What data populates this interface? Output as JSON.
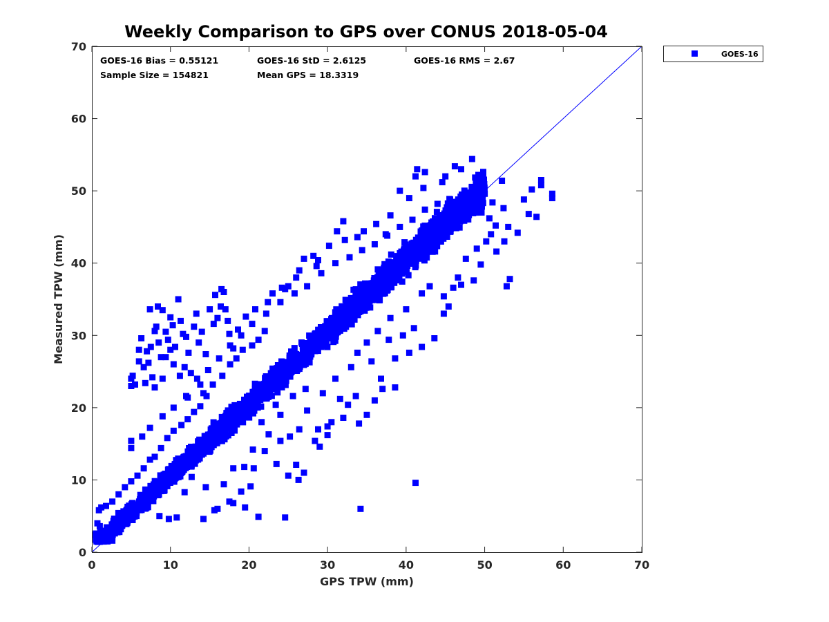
{
  "chart_data": {
    "type": "scatter",
    "title": "Weekly Comparison to GPS over CONUS 2018-05-04",
    "xlabel": "GPS TPW (mm)",
    "ylabel": "Measured TPW (mm)",
    "xlim": [
      0,
      70
    ],
    "ylim": [
      0,
      70
    ],
    "xticks": [
      0,
      10,
      20,
      30,
      40,
      50,
      60,
      70
    ],
    "yticks": [
      0,
      10,
      20,
      30,
      40,
      50,
      60,
      70
    ],
    "grid": false,
    "legend_position": "outside-top-right",
    "reference_line": {
      "from": [
        0,
        0
      ],
      "to": [
        70,
        70
      ],
      "color": "#0000ff"
    },
    "stats": [
      {
        "label": "GOES-16 Bias = 0.55121"
      },
      {
        "label": "GOES-16 StD = 2.6125"
      },
      {
        "label": "GOES-16 RMS = 2.67"
      },
      {
        "label": "Sample Size = 154821"
      },
      {
        "label": "Mean GPS = 18.3319"
      }
    ],
    "series": [
      {
        "name": "GOES-16",
        "color": "#0000ff",
        "marker": "square",
        "dense_band": {
          "description_units": "mm",
          "x_range": [
            0.5,
            50
          ],
          "halfwidth_lo": 1.6,
          "halfwidth_hi": 3.4,
          "count": 2600,
          "seed": 7
        },
        "points": [
          [
            1.0,
            3.6
          ],
          [
            1.5,
            2.0
          ],
          [
            2.0,
            1.5
          ],
          [
            2.6,
            1.6
          ],
          [
            0.9,
            5.8
          ],
          [
            1.2,
            6.2
          ],
          [
            0.7,
            4.0
          ],
          [
            3.5,
            2.8
          ],
          [
            5.0,
            23.0
          ],
          [
            5.0,
            24.0
          ],
          [
            5.2,
            24.4
          ],
          [
            5.5,
            23.2
          ],
          [
            6.0,
            28.0
          ],
          [
            6.3,
            29.6
          ],
          [
            6.6,
            25.6
          ],
          [
            7.0,
            27.8
          ],
          [
            7.2,
            26.2
          ],
          [
            7.5,
            28.4
          ],
          [
            7.7,
            24.2
          ],
          [
            8.0,
            30.6
          ],
          [
            8.2,
            31.2
          ],
          [
            8.5,
            29.0
          ],
          [
            8.8,
            27.0
          ],
          [
            9.0,
            33.5
          ],
          [
            9.4,
            30.5
          ],
          [
            9.7,
            29.4
          ],
          [
            10.0,
            32.5
          ],
          [
            10.3,
            31.4
          ],
          [
            10.6,
            28.4
          ],
          [
            11.0,
            35.0
          ],
          [
            11.3,
            32.0
          ],
          [
            11.6,
            30.2
          ],
          [
            12.0,
            29.8
          ],
          [
            12.3,
            27.6
          ],
          [
            12.6,
            24.8
          ],
          [
            13.0,
            31.2
          ],
          [
            13.3,
            33.0
          ],
          [
            13.6,
            29.0
          ],
          [
            14.0,
            30.5
          ],
          [
            14.5,
            27.4
          ],
          [
            15.0,
            33.6
          ],
          [
            15.5,
            31.6
          ],
          [
            15.7,
            35.6
          ],
          [
            16.0,
            32.4
          ],
          [
            16.5,
            36.4
          ],
          [
            16.8,
            36.0
          ],
          [
            16.4,
            34.0
          ],
          [
            17.0,
            33.6
          ],
          [
            17.5,
            30.2
          ],
          [
            18.0,
            28.2
          ],
          [
            17.3,
            32.0
          ],
          [
            6.0,
            26.4
          ],
          [
            6.8,
            23.4
          ],
          [
            9.0,
            24.0
          ],
          [
            10.4,
            26.0
          ],
          [
            11.8,
            25.6
          ],
          [
            13.8,
            23.2
          ],
          [
            12.2,
            21.4
          ],
          [
            14.2,
            22.0
          ],
          [
            8.0,
            22.8
          ],
          [
            10.0,
            28.0
          ],
          [
            7.4,
            33.6
          ],
          [
            8.4,
            34.0
          ],
          [
            9.4,
            27.0
          ],
          [
            11.2,
            24.4
          ],
          [
            24.6,
            4.8
          ],
          [
            21.2,
            4.9
          ],
          [
            19.5,
            6.2
          ],
          [
            18.0,
            6.8
          ],
          [
            17.5,
            7.0
          ],
          [
            16.8,
            9.4
          ],
          [
            15.6,
            5.8
          ],
          [
            14.5,
            9.0
          ],
          [
            12.7,
            10.4
          ],
          [
            11.8,
            8.3
          ],
          [
            20.2,
            9.1
          ],
          [
            19.0,
            8.4
          ],
          [
            10.8,
            4.8
          ],
          [
            9.8,
            4.6
          ],
          [
            8.6,
            5.0
          ],
          [
            22.0,
            14.0
          ],
          [
            23.5,
            12.2
          ],
          [
            25.0,
            10.6
          ],
          [
            26.3,
            10.0
          ],
          [
            27.0,
            11.0
          ],
          [
            26.0,
            12.1
          ],
          [
            22.5,
            16.3
          ],
          [
            24.0,
            15.4
          ],
          [
            25.2,
            16.0
          ],
          [
            26.4,
            17.0
          ],
          [
            29.0,
            14.6
          ],
          [
            30.0,
            16.2
          ],
          [
            32.0,
            18.6
          ],
          [
            34.0,
            17.8
          ],
          [
            35.0,
            19.0
          ],
          [
            36.0,
            21.0
          ],
          [
            37.0,
            22.6
          ],
          [
            38.6,
            22.8
          ],
          [
            41.2,
            9.6
          ],
          [
            34.2,
            6.0
          ],
          [
            28.8,
            17.0
          ],
          [
            30.5,
            18.0
          ],
          [
            27.4,
            19.6
          ],
          [
            24.0,
            19.0
          ],
          [
            21.6,
            18.0
          ],
          [
            20.5,
            14.2
          ],
          [
            30.0,
            17.4
          ],
          [
            32.6,
            20.4
          ],
          [
            33.6,
            21.6
          ],
          [
            36.8,
            24.0
          ],
          [
            38.6,
            26.8
          ],
          [
            40.4,
            27.6
          ],
          [
            42.0,
            28.4
          ],
          [
            43.6,
            29.6
          ],
          [
            44.8,
            33.0
          ],
          [
            46.0,
            36.6
          ],
          [
            47.0,
            37.0
          ],
          [
            48.6,
            37.6
          ],
          [
            52.8,
            36.8
          ],
          [
            53.2,
            37.8
          ],
          [
            49.5,
            39.8
          ],
          [
            51.5,
            41.6
          ],
          [
            52.5,
            43.0
          ],
          [
            53.0,
            45.0
          ],
          [
            54.2,
            44.2
          ],
          [
            55.6,
            46.8
          ],
          [
            56.6,
            46.4
          ],
          [
            55.0,
            48.8
          ],
          [
            56.0,
            50.2
          ],
          [
            57.2,
            50.8
          ],
          [
            57.2,
            51.5
          ],
          [
            58.6,
            49.0
          ],
          [
            58.6,
            49.6
          ],
          [
            52.2,
            51.4
          ],
          [
            51.0,
            48.4
          ],
          [
            50.0,
            49.6
          ],
          [
            49.2,
            52.2
          ],
          [
            48.4,
            54.4
          ],
          [
            47.0,
            53.0
          ],
          [
            46.2,
            53.4
          ],
          [
            45.0,
            52.0
          ],
          [
            44.6,
            51.2
          ],
          [
            42.2,
            50.4
          ],
          [
            42.4,
            52.6
          ],
          [
            41.2,
            52.0
          ],
          [
            41.4,
            53.0
          ],
          [
            40.4,
            49.0
          ],
          [
            39.2,
            50.0
          ],
          [
            38.0,
            46.6
          ],
          [
            37.4,
            44.0
          ],
          [
            36.2,
            45.4
          ],
          [
            34.6,
            44.4
          ],
          [
            33.8,
            43.6
          ],
          [
            32.2,
            43.2
          ],
          [
            32.0,
            45.8
          ],
          [
            31.2,
            44.4
          ],
          [
            30.2,
            42.4
          ],
          [
            28.2,
            41.0
          ],
          [
            28.8,
            40.4
          ],
          [
            27.0,
            40.6
          ],
          [
            26.0,
            38.0
          ],
          [
            25.0,
            36.8
          ],
          [
            24.2,
            36.6
          ],
          [
            23.0,
            35.8
          ],
          [
            24.6,
            36.4
          ],
          [
            22.4,
            34.6
          ],
          [
            20.8,
            33.6
          ],
          [
            19.6,
            32.6
          ],
          [
            18.6,
            30.8
          ],
          [
            28.6,
            39.6
          ],
          [
            26.4,
            39.0
          ],
          [
            22.0,
            30.6
          ],
          [
            21.2,
            29.4
          ],
          [
            20.4,
            28.6
          ],
          [
            19.2,
            28.0
          ],
          [
            18.4,
            26.8
          ],
          [
            17.6,
            26.0
          ],
          [
            16.6,
            24.4
          ],
          [
            15.4,
            23.2
          ],
          [
            14.6,
            21.6
          ],
          [
            13.8,
            20.2
          ],
          [
            13.0,
            19.4
          ],
          [
            12.2,
            18.4
          ],
          [
            11.4,
            17.6
          ],
          [
            10.4,
            16.8
          ],
          [
            9.6,
            15.8
          ],
          [
            8.8,
            14.4
          ],
          [
            8.0,
            13.2
          ],
          [
            7.4,
            12.8
          ],
          [
            6.6,
            11.6
          ],
          [
            5.8,
            10.6
          ],
          [
            5.0,
            9.8
          ],
          [
            4.2,
            9.0
          ],
          [
            3.4,
            8.0
          ],
          [
            2.6,
            7.0
          ],
          [
            1.8,
            6.4
          ],
          [
            5.0,
            15.4
          ],
          [
            5.0,
            14.4
          ],
          [
            6.4,
            16.0
          ],
          [
            7.4,
            17.2
          ],
          [
            9.0,
            18.8
          ],
          [
            10.4,
            20.0
          ],
          [
            12.0,
            21.6
          ],
          [
            13.4,
            24.0
          ],
          [
            14.8,
            25.2
          ],
          [
            16.2,
            26.8
          ],
          [
            17.6,
            28.6
          ],
          [
            19.0,
            30.0
          ],
          [
            20.4,
            31.6
          ],
          [
            22.2,
            33.0
          ],
          [
            24.0,
            34.6
          ],
          [
            25.8,
            35.8
          ],
          [
            27.4,
            36.8
          ],
          [
            29.2,
            38.6
          ],
          [
            31.0,
            40.0
          ],
          [
            32.8,
            40.8
          ],
          [
            34.4,
            41.8
          ],
          [
            36.0,
            42.6
          ],
          [
            37.6,
            43.8
          ],
          [
            39.2,
            45.0
          ],
          [
            40.8,
            46.0
          ],
          [
            42.4,
            47.4
          ],
          [
            44.0,
            48.2
          ],
          [
            45.6,
            48.8
          ],
          [
            47.2,
            49.2
          ],
          [
            48.4,
            48.6
          ],
          [
            49.6,
            47.0
          ],
          [
            50.6,
            46.2
          ],
          [
            51.4,
            45.2
          ],
          [
            50.8,
            44.0
          ],
          [
            52.4,
            47.6
          ],
          [
            14.2,
            4.6
          ],
          [
            16.0,
            6.0
          ],
          [
            20.6,
            11.6
          ],
          [
            19.4,
            11.8
          ],
          [
            18.0,
            11.6
          ],
          [
            28.4,
            15.4
          ],
          [
            31.6,
            21.2
          ],
          [
            33.0,
            25.6
          ],
          [
            35.6,
            26.4
          ],
          [
            37.8,
            29.4
          ],
          [
            39.6,
            30.0
          ],
          [
            41.0,
            31.0
          ],
          [
            44.8,
            35.4
          ],
          [
            45.4,
            34.0
          ],
          [
            46.6,
            38.0
          ],
          [
            47.6,
            40.6
          ],
          [
            49.0,
            42.0
          ],
          [
            50.2,
            43.0
          ],
          [
            23.4,
            20.4
          ],
          [
            25.6,
            21.6
          ],
          [
            27.2,
            22.6
          ],
          [
            29.4,
            22.0
          ],
          [
            31.0,
            24.0
          ],
          [
            33.8,
            27.6
          ],
          [
            35.0,
            29.0
          ],
          [
            36.4,
            30.6
          ],
          [
            38.0,
            32.4
          ],
          [
            40.0,
            33.6
          ],
          [
            42.0,
            35.8
          ],
          [
            43.0,
            36.8
          ]
        ]
      }
    ]
  }
}
